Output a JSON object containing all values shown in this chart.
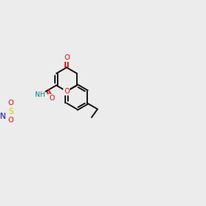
{
  "background_color": "#ececec",
  "bond_color": "#000000",
  "atom_colors": {
    "O": "#ff0000",
    "N": "#0000ff",
    "S": "#cccc00",
    "NH": "#008080",
    "C": "#000000"
  },
  "scale": 0.68
}
